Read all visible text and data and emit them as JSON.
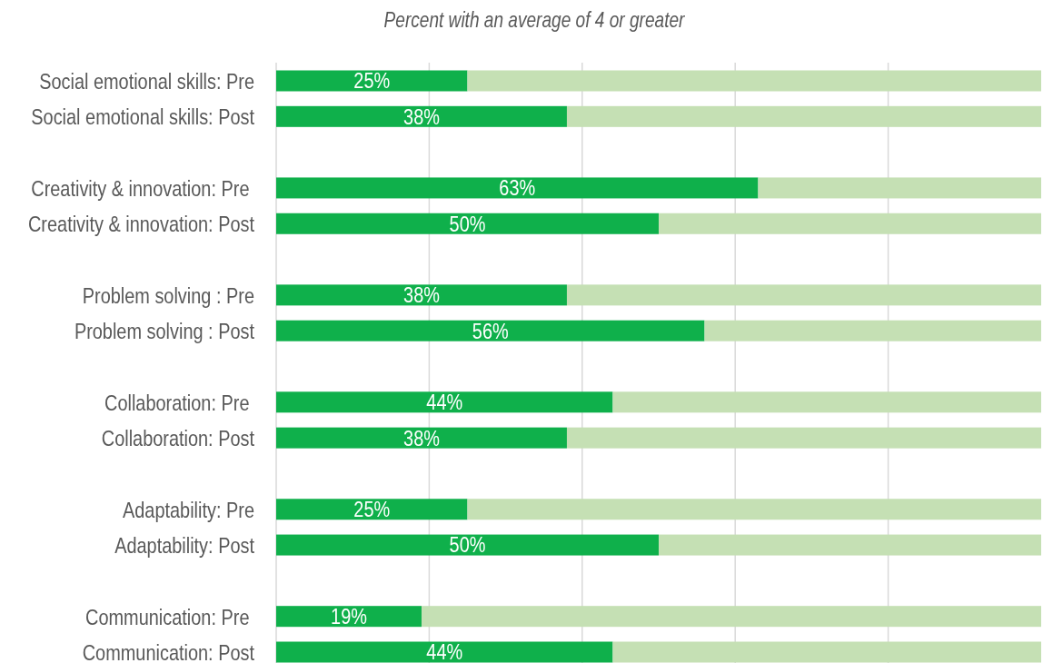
{
  "chart_data": {
    "type": "bar",
    "orientation": "horizontal",
    "stacked": true,
    "title": "Percent with an average of 4 or greater",
    "categories": [
      "Social emotional skills: Pre",
      "Social emotional skills: Post",
      null,
      "Creativity & innovation: Pre ",
      "Creativity & innovation: Post",
      null,
      "Problem solving : Pre",
      "Problem solving : Post",
      null,
      "Collaboration: Pre ",
      "Collaboration: Post",
      null,
      "Adaptability: Pre",
      "Adaptability: Post",
      null,
      "Communication: Pre ",
      "Communication: Post"
    ],
    "series": [
      {
        "color": "#0fb04b",
        "values": [
          25,
          38,
          null,
          63,
          50,
          null,
          38,
          56,
          null,
          44,
          38,
          null,
          25,
          50,
          null,
          19,
          44
        ],
        "value_labels": [
          "25%",
          "38%",
          null,
          "63%",
          "50%",
          null,
          "38%",
          "56%",
          null,
          "44%",
          "38%",
          null,
          "25%",
          "50%",
          null,
          "19%",
          "44%"
        ]
      },
      {
        "color": "#c5e0b4",
        "values": [
          75,
          62,
          null,
          37,
          50,
          null,
          62,
          44,
          null,
          56,
          62,
          null,
          75,
          50,
          null,
          81,
          56
        ]
      }
    ],
    "xlim": [
      0,
      100
    ],
    "xticks": [
      {
        "value": 0,
        "label": null
      },
      {
        "value": 20,
        "label": null
      },
      {
        "value": 40,
        "label": null
      },
      {
        "value": 60,
        "label": null
      },
      {
        "value": 80,
        "label": null
      }
    ],
    "grid": "x",
    "tick_labels": "y"
  }
}
